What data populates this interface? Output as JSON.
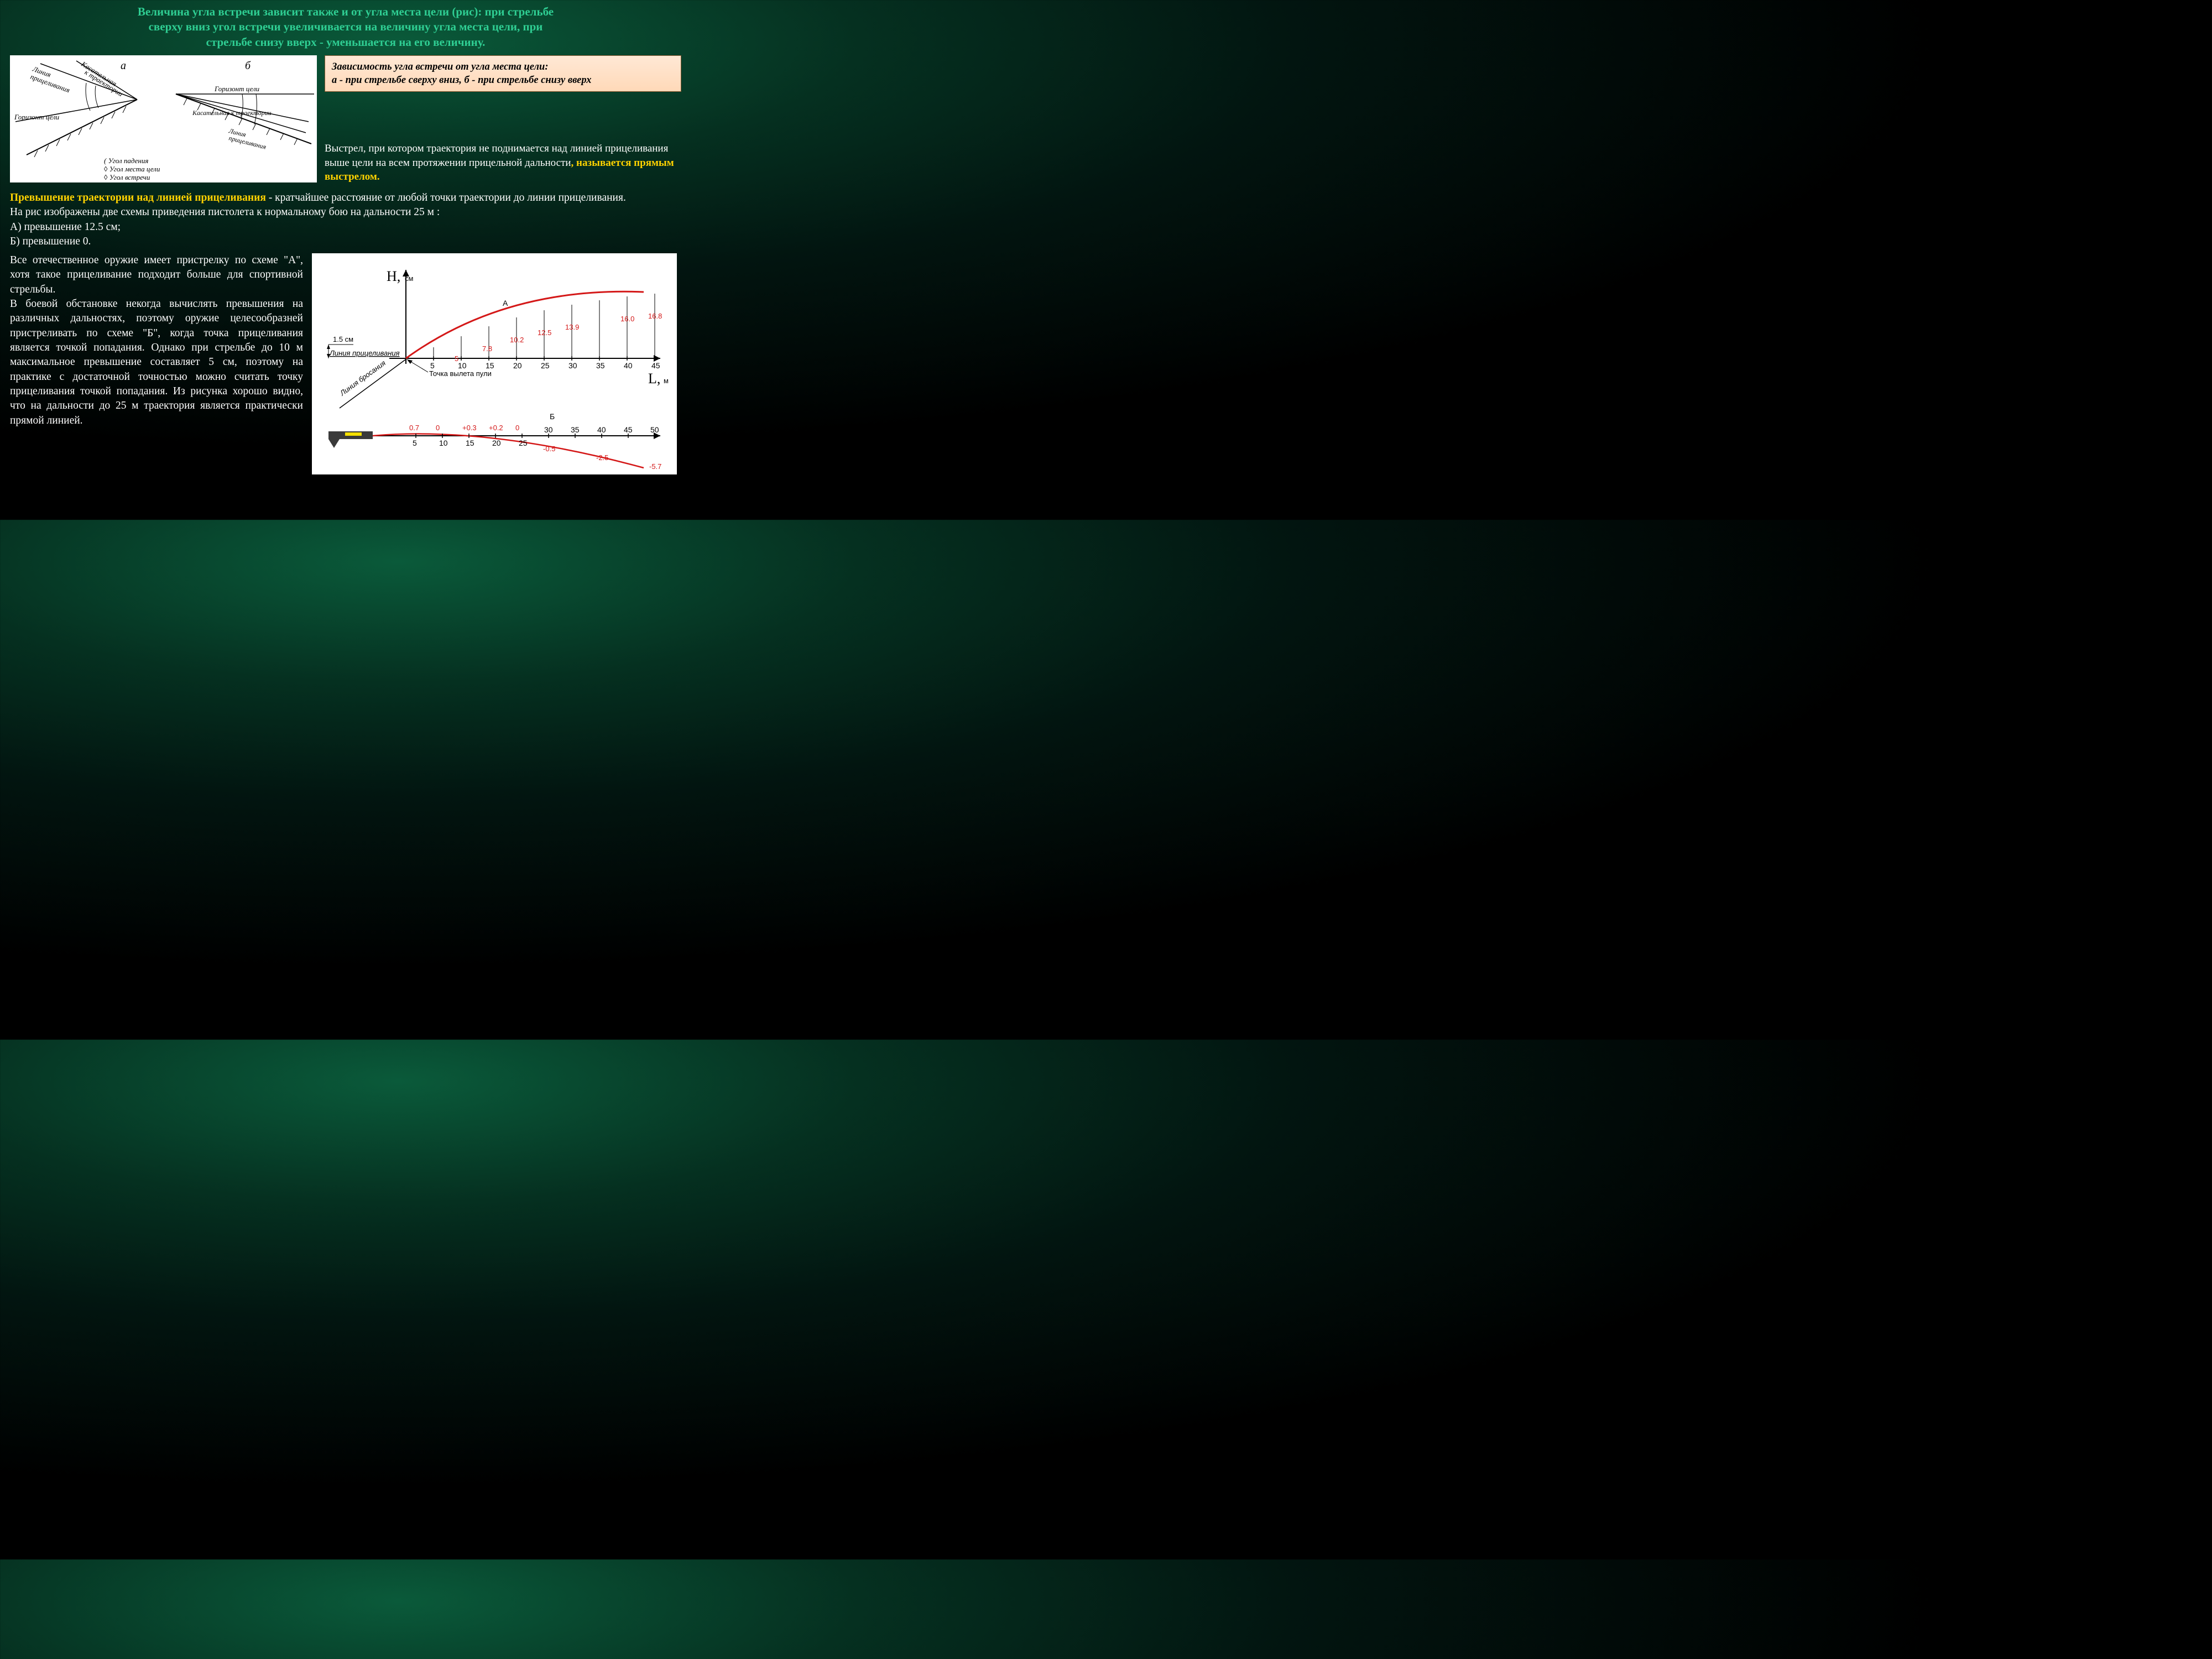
{
  "title_line1": "Величина угла встречи зависит также и от угла места цели (рис): при стрельбе",
  "title_line2": "сверху вниз угол встречи увеличивается на величину угла места цели, при",
  "title_line3": "стрельбе снизу вверх - уменьшается на его величину.",
  "legend_line1": "Зависимость угла встречи от угла места цели:",
  "legend_line2": "а - при стрельбе сверху вниз, б - при стрельбе снизу вверх",
  "shot_text_plain": "Выстрел, при котором траектория не поднимается над линией прицеливания выше цели на всем протяжении прицельной дальности",
  "shot_text_yellow": ", называется прямым выстрелом.",
  "mid_title": "Превышение траектории над линией прицеливания",
  "mid_rest": " - кратчайшее расстояние от любой точки траектории до линии прицеливания.",
  "mid_line2": "На рис изображены две схемы приведения пистолета к нормальному бою на дальности 25 м :",
  "mid_lineA": "А) превышение 12.5 см;",
  "mid_lineB": "Б) превышение 0.",
  "body_text": "Все отечественное оружие имеет пристрелку по схеме \"А\", хотя такое прицеливание подходит больше для спортивной стрельбы.\nВ боевой обстановке некогда вычислять превышения на различных дальностях, поэтому оружие целесообразней пристреливать по схеме \"Б\", когда точка прицеливания является точкой попадания. Однако при стрельбе до 10 м максимальное превышение составляет 5 см, поэтому на практике с достаточной точностью можно считать точку прицеливания точкой попадания. Из рисунка хорошо видно, что на дальности до 25 м траектория является практически прямой линией.",
  "angle_diagram": {
    "label_a": "а",
    "label_b": "б",
    "line_aim": "Линия прицеливания",
    "tangent": "Касательная к траектории",
    "horizon": "Горизонт цели",
    "tangent_traj": "Касательная к траектории",
    "line_aim2": "Линия прицеливания",
    "legend_fall": "Угол падения",
    "legend_place": "Угол места цели",
    "legend_meet": "Угол встречи"
  },
  "chart": {
    "H_label": "Н,",
    "H_unit": "см",
    "L_label": "L,",
    "L_unit": "м",
    "aim_line": "Линия прицеливания",
    "throw_line": "Линия бросания",
    "bullet_point": "Точка вылета пули",
    "offset_label": "1.5 см",
    "curve_A": "А",
    "curve_B": "Б",
    "A_x_ticks": [
      5,
      10,
      15,
      20,
      25,
      30,
      35,
      40,
      45
    ],
    "A_values": {
      "10": "5",
      "15": "7.8",
      "20": "10.2",
      "25": "12.5",
      "30": "13.9",
      "40": "16.0",
      "45": "16.8"
    },
    "B_top_ticks": [
      30,
      35,
      40,
      45,
      50
    ],
    "B_bottom_ticks": [
      5,
      10,
      15,
      20,
      25
    ],
    "B_top_values": {
      "5": "0.7",
      "10": "0",
      "15": "+0.3",
      "20": "+0.2",
      "25": "0"
    },
    "B_bottom_values": {
      "30": "-0.5",
      "40": "-2.5",
      "50": "-5.7"
    },
    "colors": {
      "curve": "#d41818",
      "axis": "#000000",
      "bg": "#ffffff"
    }
  }
}
